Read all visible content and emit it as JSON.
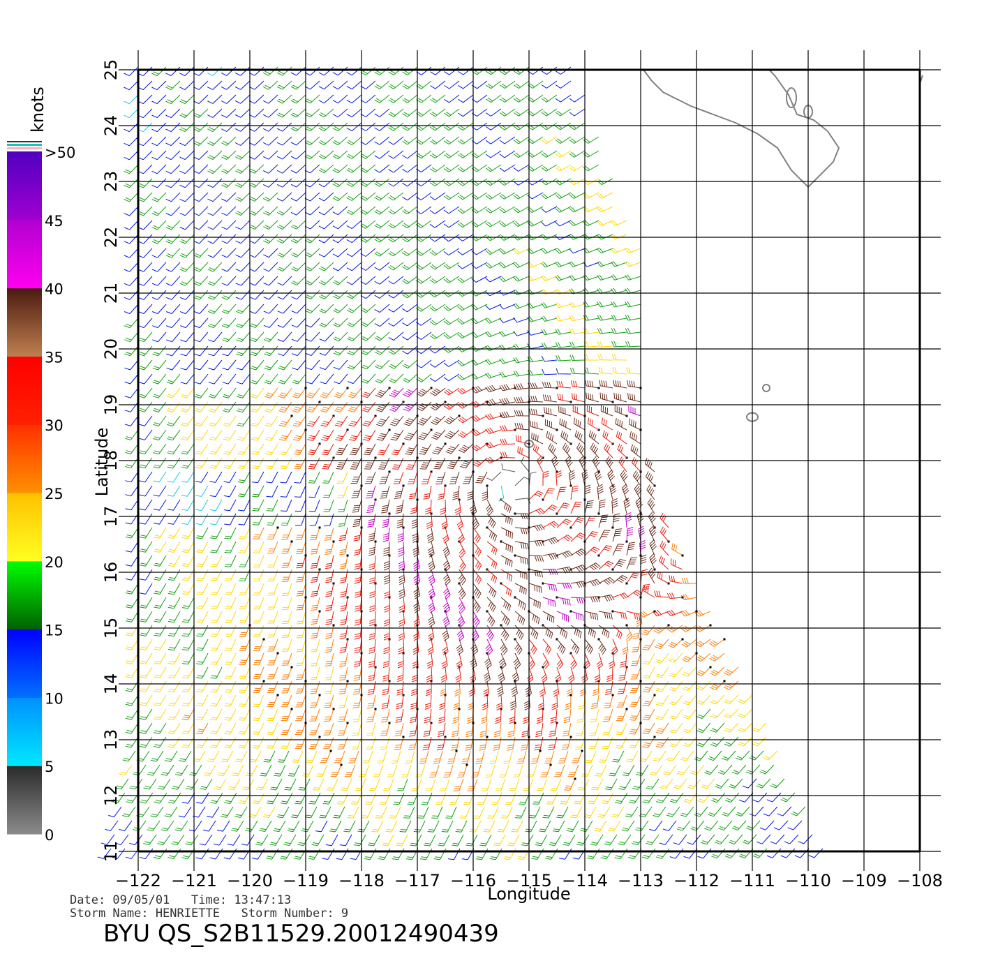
{
  "map": {
    "lon_ticks": [
      "−122",
      "−121",
      "−120",
      "−119",
      "−118",
      "−117",
      "−116",
      "−115",
      "−114",
      "−113",
      "−112",
      "−111",
      "−110",
      "−109",
      "−108"
    ],
    "lat_ticks": [
      "11",
      "12",
      "13",
      "14",
      "15",
      "16",
      "17",
      "18",
      "19",
      "20",
      "21",
      "22",
      "23",
      "24",
      "25"
    ],
    "xlabel": "Longitude",
    "ylabel": "Latitude",
    "land_color": "#808080",
    "grid_color": "#000000"
  },
  "legend": {
    "unit": "knots",
    "ticks": [
      "0",
      "5",
      "10",
      "15",
      "20",
      "25",
      "30",
      "35",
      "40",
      "45",
      ">50"
    ],
    "bands": [
      {
        "range": "0-5",
        "top": "#2a2a2a",
        "bottom": "#8c8c8c"
      },
      {
        "range": "5-10",
        "top": "#0090ff",
        "bottom": "#00e8ff"
      },
      {
        "range": "10-15",
        "top": "#0000ff",
        "bottom": "#0070ff"
      },
      {
        "range": "15-20",
        "top": "#00ff00",
        "bottom": "#006000"
      },
      {
        "range": "20-25",
        "top": "#ffc000",
        "bottom": "#ffff20"
      },
      {
        "range": "25-30",
        "top": "#ff3000",
        "bottom": "#ff9000"
      },
      {
        "range": "30-35",
        "top": "#ff0000",
        "bottom": "#ff2000"
      },
      {
        "range": "35-40",
        "top": "#4a1a10",
        "bottom": "#c08050"
      },
      {
        "range": "40-45",
        "top": "#b000d0",
        "bottom": "#ff00f0"
      },
      {
        "range": "45-50",
        "top": "#5000c0",
        "bottom": "#a000d0"
      }
    ]
  },
  "info": {
    "date_line": "Date: 09/05/01   Time: 13:47:13",
    "storm_line": "Storm Name: HENRIETTE   Storm Number: 9",
    "file_id": "BYU QS_S2B11529.20012490439"
  },
  "storm": {
    "name": "HENRIETTE",
    "center_lon": -115.3,
    "center_lat": 17.6
  }
}
